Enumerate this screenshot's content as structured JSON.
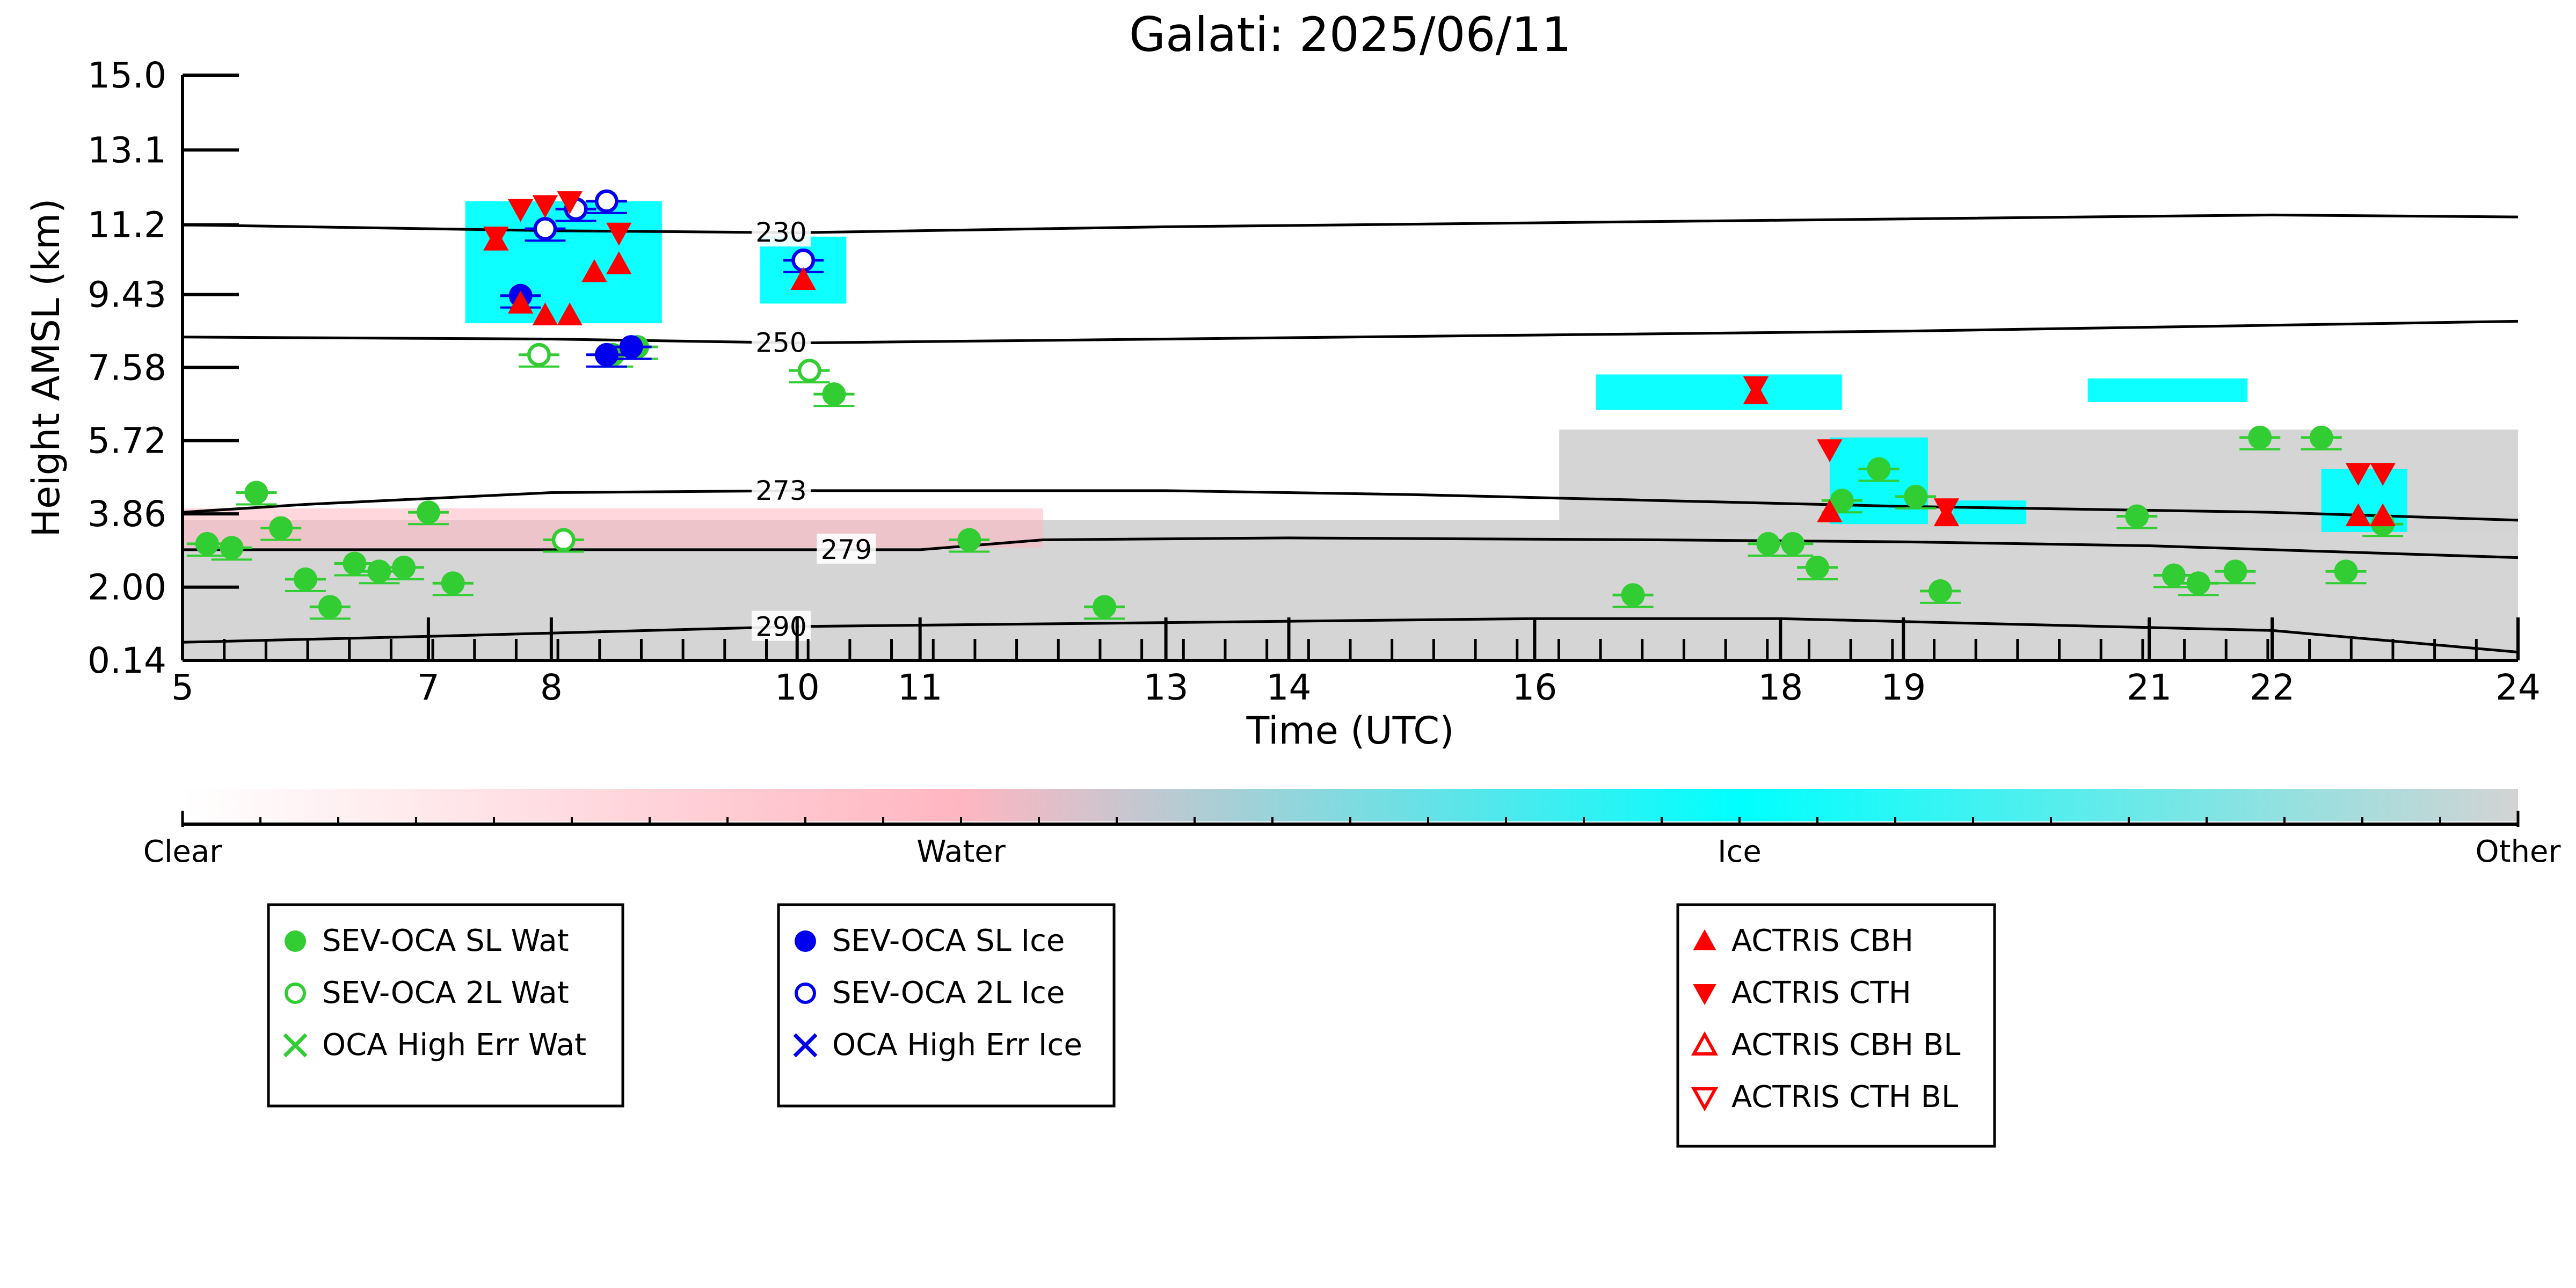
{
  "chart_data": {
    "type": "scatter",
    "title": "Galati: 2025/06/11",
    "xlabel": "Time (UTC)",
    "ylabel": "Height AMSL (km)",
    "xlim": [
      5,
      24
    ],
    "ylim": [
      0.14,
      15.0
    ],
    "x_tick_labels": [
      "5",
      "7",
      "8",
      "10",
      "11",
      "13",
      "14",
      "16",
      "18",
      "19",
      "21",
      "22",
      "24"
    ],
    "y_tick_labels": [
      "0.14",
      "2.00",
      "3.86",
      "5.72",
      "7.58",
      "9.43",
      "11.2",
      "13.1",
      "15.0"
    ],
    "colorbar": {
      "labels": [
        "Clear",
        "Water",
        "Ice",
        "Other"
      ],
      "colors": [
        "#ffffff",
        "#ffb6c1",
        "#00ffff",
        "#d3d3d3"
      ]
    },
    "isotherms": [
      {
        "label": "230",
        "label_x": 9.87,
        "points": [
          [
            5,
            11.2
          ],
          [
            8,
            11.05
          ],
          [
            10,
            11.0
          ],
          [
            13,
            11.15
          ],
          [
            16,
            11.25
          ],
          [
            19,
            11.35
          ],
          [
            22,
            11.45
          ],
          [
            24,
            11.4
          ]
        ]
      },
      {
        "label": "250",
        "label_x": 9.87,
        "points": [
          [
            5,
            8.35
          ],
          [
            8,
            8.3
          ],
          [
            10,
            8.2
          ],
          [
            13,
            8.3
          ],
          [
            16,
            8.4
          ],
          [
            19,
            8.5
          ],
          [
            22,
            8.65
          ],
          [
            24,
            8.75
          ]
        ]
      },
      {
        "label": "273",
        "label_x": 9.87,
        "points": [
          [
            5,
            3.9
          ],
          [
            6,
            4.1
          ],
          [
            8,
            4.4
          ],
          [
            10,
            4.45
          ],
          [
            13,
            4.45
          ],
          [
            15,
            4.35
          ],
          [
            17,
            4.2
          ],
          [
            19,
            4.05
          ],
          [
            21,
            3.95
          ],
          [
            22,
            3.9
          ],
          [
            24,
            3.7
          ]
        ]
      },
      {
        "label": "279",
        "label_x": 10.4,
        "points": [
          [
            5,
            2.95
          ],
          [
            8,
            2.95
          ],
          [
            10.2,
            2.95
          ],
          [
            11,
            2.95
          ],
          [
            12,
            3.2
          ],
          [
            14,
            3.25
          ],
          [
            17,
            3.2
          ],
          [
            19,
            3.15
          ],
          [
            21,
            3.05
          ],
          [
            22,
            2.95
          ],
          [
            24,
            2.75
          ]
        ]
      },
      {
        "label": "290",
        "label_x": 9.87,
        "points": [
          [
            5,
            0.6
          ],
          [
            7,
            0.75
          ],
          [
            10,
            1.0
          ],
          [
            13,
            1.1
          ],
          [
            16,
            1.2
          ],
          [
            18,
            1.2
          ],
          [
            20,
            1.05
          ],
          [
            22,
            0.9
          ],
          [
            24,
            0.35
          ]
        ]
      }
    ],
    "cloud_regions": [
      {
        "type": "Other",
        "x": [
          5,
          24
        ],
        "y": [
          0.14,
          3.7
        ]
      },
      {
        "type": "Other",
        "x": [
          16.2,
          24
        ],
        "y": [
          3.4,
          6.0
        ]
      },
      {
        "type": "Water",
        "x": [
          5,
          12
        ],
        "y": [
          3.0,
          4.0
        ]
      },
      {
        "type": "Ice",
        "x": [
          7.3,
          8.9
        ],
        "y": [
          8.7,
          11.8
        ]
      },
      {
        "type": "Ice",
        "x": [
          9.7,
          10.4
        ],
        "y": [
          9.2,
          10.9
        ]
      },
      {
        "type": "Ice",
        "x": [
          16.5,
          18.5
        ],
        "y": [
          6.5,
          7.4
        ]
      },
      {
        "type": "Ice",
        "x": [
          18.4,
          19.2
        ],
        "y": [
          3.6,
          5.8
        ]
      },
      {
        "type": "Ice",
        "x": [
          19.4,
          20
        ],
        "y": [
          3.6,
          4.2
        ]
      },
      {
        "type": "Ice",
        "x": [
          20.5,
          21.8
        ],
        "y": [
          6.7,
          7.3
        ]
      },
      {
        "type": "Ice",
        "x": [
          22.4,
          23.1
        ],
        "y": [
          3.4,
          5.0
        ]
      }
    ],
    "series": [
      {
        "name": "SEV-OCA SL Wat",
        "color": "#32cd32",
        "marker": "filled-circle",
        "x": [
          5.2,
          5.4,
          5.6,
          5.8,
          6.0,
          6.2,
          6.4,
          6.6,
          6.8,
          7.0,
          7.2,
          8.5,
          8.7,
          10.3,
          11.4,
          12.5,
          16.8,
          17.9,
          18.1,
          18.3,
          18.5,
          18.8,
          19.1,
          19.3,
          20.9,
          21.2,
          21.4,
          21.7,
          21.9,
          22.4,
          22.6,
          22.9
        ],
        "y": [
          3.1,
          3.0,
          4.4,
          3.5,
          2.2,
          1.5,
          2.6,
          2.4,
          2.5,
          3.9,
          2.1,
          7.9,
          8.1,
          6.9,
          3.2,
          1.5,
          1.8,
          3.1,
          3.1,
          2.5,
          4.2,
          5.0,
          4.3,
          1.9,
          3.8,
          2.3,
          2.1,
          2.4,
          5.8,
          5.8,
          2.4,
          3.6
        ]
      },
      {
        "name": "SEV-OCA 2L Wat",
        "color": "#32cd32",
        "marker": "open-circle",
        "x": [
          7.9,
          8.1,
          10.1
        ],
        "y": [
          7.9,
          3.2,
          7.5
        ]
      },
      {
        "name": "OCA High Err Wat",
        "color": "#32cd32",
        "marker": "x",
        "x": [],
        "y": []
      },
      {
        "name": "SEV-OCA SL Ice",
        "color": "#0000ee",
        "marker": "filled-circle",
        "x": [
          7.75,
          8.45,
          8.65
        ],
        "y": [
          9.4,
          7.9,
          8.1
        ]
      },
      {
        "name": "SEV-OCA 2L Ice",
        "color": "#0000ee",
        "marker": "open-circle",
        "x": [
          7.95,
          8.2,
          8.45,
          10.05
        ],
        "y": [
          11.1,
          11.6,
          11.8,
          10.3
        ]
      },
      {
        "name": "OCA High Err Ice",
        "color": "#0000ee",
        "marker": "x",
        "x": [],
        "y": []
      },
      {
        "name": "ACTRIS CBH",
        "color": "#ff0000",
        "marker": "triangle-up",
        "x": [
          7.55,
          7.75,
          7.95,
          8.15,
          8.35,
          8.55,
          10.05,
          17.8,
          18.4,
          19.35,
          22.7,
          22.9
        ],
        "y": [
          10.8,
          9.2,
          8.9,
          8.9,
          10.0,
          10.2,
          9.8,
          6.9,
          3.9,
          3.8,
          3.8,
          3.8
        ]
      },
      {
        "name": "ACTRIS CTH",
        "color": "#ff0000",
        "marker": "triangle-down",
        "x": [
          7.55,
          7.75,
          7.95,
          8.15,
          8.55,
          17.8,
          18.4,
          19.35,
          22.7,
          22.9
        ],
        "y": [
          10.9,
          11.6,
          11.7,
          11.8,
          11.0,
          7.1,
          5.5,
          4.0,
          4.9,
          4.9
        ]
      },
      {
        "name": "ACTRIS CBH BL",
        "color": "#ff0000",
        "marker": "open-triangle-up",
        "x": [],
        "y": []
      },
      {
        "name": "ACTRIS CTH BL",
        "color": "#ff0000",
        "marker": "open-triangle-down",
        "x": [],
        "y": []
      }
    ],
    "legend_groups": [
      [
        "SEV-OCA SL Wat",
        "SEV-OCA 2L Wat",
        "OCA High Err Wat"
      ],
      [
        "SEV-OCA SL Ice",
        "SEV-OCA 2L Ice",
        "OCA High Err Ice"
      ],
      [
        "ACTRIS CBH",
        "ACTRIS CTH",
        "ACTRIS CBH BL",
        "ACTRIS CTH BL"
      ]
    ],
    "legend_placement": "below",
    "grid": false
  }
}
